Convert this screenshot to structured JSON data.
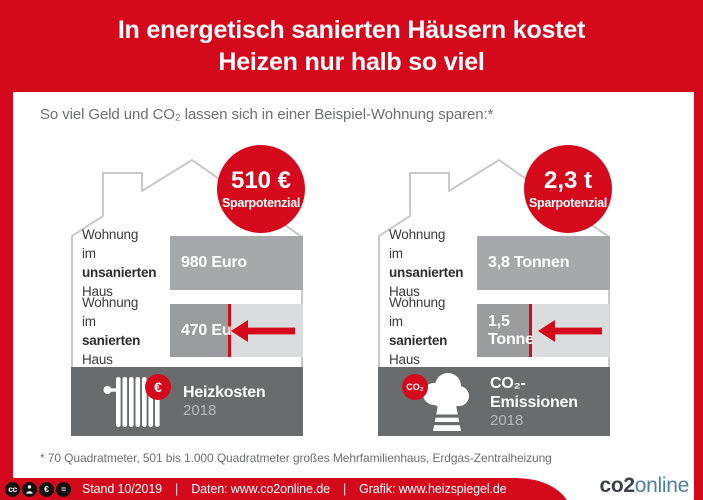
{
  "colors": {
    "brand_red": "#d40a1c",
    "bar_gray": "#a6a8aa",
    "bar_dark_gray": "#9b9c9e",
    "bar_light_gray": "#dbdcdd",
    "footer_gray": "#6a6b6d",
    "logo_blue": "#4e7fa4"
  },
  "header": {
    "title_line1": "In energetisch sanierten Häusern kostet",
    "title_line2": "Heizen nur halb so viel"
  },
  "intro": {
    "text": "So viel Geld und CO₂ lassen sich in einer Beispiel-Wohnung sparen:*"
  },
  "houses": [
    {
      "badge": {
        "value": "510 €",
        "label": "Sparpotenzial"
      },
      "rows": [
        {
          "label_line1": "Wohnung",
          "label_line2_pre": "im ",
          "label_line2_bold": "unsanierten",
          "label_line3": "Haus",
          "value_line1": "980 Euro",
          "value_line2": "",
          "bar_pct": 100
        },
        {
          "label_line1": "Wohnung",
          "label_line2_pre": "im ",
          "label_line2_bold": "sanierten",
          "label_line3": "Haus",
          "value_line1": "470 Euro",
          "value_line2": "",
          "bar_pct": 46
        }
      ],
      "footer": {
        "title": "Heizkosten",
        "year": "2018",
        "icon": "radiator-icon",
        "icon_badge": "€"
      }
    },
    {
      "badge": {
        "value": "2,3 t",
        "label": "Sparpotenzial"
      },
      "rows": [
        {
          "label_line1": "Wohnung",
          "label_line2_pre": "im ",
          "label_line2_bold": "unsanierten",
          "label_line3": "Haus",
          "value_line1": "3,8 Tonnen",
          "value_line2": "",
          "bar_pct": 100
        },
        {
          "label_line1": "Wohnung",
          "label_line2_pre": "im ",
          "label_line2_bold": "sanierten",
          "label_line3": "Haus",
          "value_line1": "1,5",
          "value_line2": "Tonnen",
          "bar_pct": 41
        }
      ],
      "footer": {
        "title": "CO₂-Emissionen",
        "year": "2018",
        "icon": "chimney-icon",
        "icon_badge": "CO₂"
      }
    }
  ],
  "footnote": {
    "text": "* 70 Quadratmeter, 501 bis 1.000 Quadratmeter großes Mehrfamilienhaus, Erdgas-Zentralheizung"
  },
  "bottom_bar": {
    "stand": "Stand 10/2019",
    "separator": "|",
    "daten": "Daten: www.co2online.de",
    "grafik": "Grafik: www.heizspiegel.de",
    "license_icons": [
      "cc",
      "by",
      "nc-eu",
      "nd"
    ],
    "cc_label": "cc",
    "nd_label": "="
  },
  "logo": {
    "part_bold": "co2",
    "part_light": "online"
  },
  "chart_data": [
    {
      "type": "bar",
      "title": "Heizkosten 2018",
      "categories": [
        "Wohnung im unsanierten Haus",
        "Wohnung im sanierten Haus"
      ],
      "values": [
        980,
        470
      ],
      "unit": "Euro",
      "value_labels": [
        "980 Euro",
        "470 Euro"
      ],
      "savings_value": "510 €",
      "savings_label": "Sparpotenzial",
      "orientation": "horizontal",
      "xlabel": "",
      "ylabel": ""
    },
    {
      "type": "bar",
      "title": "CO₂-Emissionen 2018",
      "categories": [
        "Wohnung im unsanierten Haus",
        "Wohnung im sanierten Haus"
      ],
      "values": [
        3.8,
        1.5
      ],
      "unit": "Tonnen",
      "value_labels": [
        "3,8 Tonnen",
        "1,5 Tonnen"
      ],
      "savings_value": "2,3 t",
      "savings_label": "Sparpotenzial",
      "orientation": "horizontal",
      "xlabel": "",
      "ylabel": ""
    }
  ]
}
